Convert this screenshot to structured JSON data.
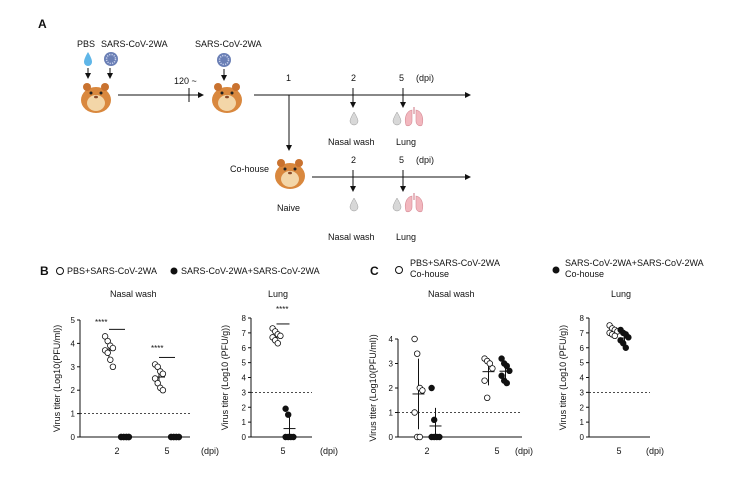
{
  "panelA": {
    "letter": "A",
    "pbs": "PBS",
    "virus1": "SARS-CoV-2WA",
    "virus2": "SARS-CoV-2WA",
    "interval": "120 ~",
    "days": [
      "1",
      "2",
      "5"
    ],
    "dpi": "(dpi)",
    "days2": [
      "2",
      "5"
    ],
    "dpi2": "(dpi)",
    "cohouse": "Co-house",
    "naive": "Naive",
    "nasal_wash": "Nasal wash",
    "lung": "Lung",
    "nasal_wash2": "Nasal wash",
    "lung2": "Lung"
  },
  "panelB": {
    "letter": "B",
    "legend_open": "PBS+SARS-CoV-2WA",
    "legend_filled": "SARS-CoV-2WA+SARS-CoV-2WA",
    "dpi_label": "(dpi)",
    "dpi_label2": "(dpi)",
    "sig1": "****",
    "sig2": "****",
    "sig3": "****"
  },
  "panelC": {
    "letter": "C",
    "legend_open_line1": "PBS+SARS-CoV-2WA",
    "legend_open_line2": "Co-house",
    "legend_filled_line1": "SARS-CoV-2WA+SARS-CoV-2WA",
    "legend_filled_line2": "Co-house",
    "dpi_label": "(dpi)",
    "dpi_label2": "(dpi)"
  },
  "colors": {
    "lung_pink": "#f2b7be",
    "hamster": "#d9883e",
    "drop_blue": "#5fb6e8",
    "virus_blue": "#6a7fb5"
  },
  "chart_data": [
    {
      "type": "scatter",
      "panel": "B",
      "title": "Nasal wash",
      "ylabel": "Virus titer (Log10(PFU/ml))",
      "categories": [
        "2",
        "5"
      ],
      "ylim": [
        0,
        5
      ],
      "yticks": [
        "0",
        "1",
        "2",
        "3",
        "4",
        "5"
      ],
      "limit_of_detection": 1,
      "series": [
        {
          "name": "PBS+SARS-CoV-2WA",
          "values": [
            [
              4.3,
              4.1,
              3.9,
              3.8,
              3.7,
              3.6,
              3.3,
              3.0
            ],
            [
              3.1,
              3.0,
              2.8,
              2.7,
              2.5,
              2.3,
              2.1,
              2.0
            ]
          ]
        },
        {
          "name": "SARS-CoV-2WA+SARS-CoV-2WA",
          "values": [
            [
              0,
              0,
              0,
              0,
              0,
              0,
              0,
              0
            ],
            [
              0,
              0,
              0,
              0,
              0,
              0,
              0,
              0
            ]
          ]
        }
      ]
    },
    {
      "type": "scatter",
      "panel": "B",
      "title": "Lung",
      "ylabel": "Virus titer (Log10 (PFU/g))",
      "categories": [
        "5"
      ],
      "ylim": [
        0,
        8
      ],
      "yticks": [
        "0",
        "1",
        "2",
        "3",
        "4",
        "5",
        "6",
        "7",
        "8"
      ],
      "limit_of_detection": 3,
      "series": [
        {
          "name": "PBS+SARS-CoV-2WA",
          "values": [
            [
              7.3,
              7.1,
              6.9,
              6.8,
              6.7,
              6.5,
              6.3
            ]
          ]
        },
        {
          "name": "SARS-CoV-2WA+SARS-CoV-2WA",
          "values": [
            [
              1.9,
              1.5,
              0,
              0,
              0,
              0
            ]
          ]
        }
      ]
    },
    {
      "type": "scatter",
      "panel": "C",
      "title": "Nasal wash",
      "ylabel": "Virus titer (Log10(PFU/ml))",
      "categories": [
        "2",
        "5"
      ],
      "ylim": [
        0,
        4
      ],
      "yticks": [
        "0",
        "1",
        "2",
        "3",
        "4"
      ],
      "limit_of_detection": 1,
      "series": [
        {
          "name": "PBS+SARS-CoV-2WA Co-house",
          "values": [
            [
              4.0,
              3.4,
              2.0,
              1.9,
              1.0,
              0,
              0
            ],
            [
              3.2,
              3.1,
              3.0,
              2.8,
              2.3,
              1.6
            ]
          ]
        },
        {
          "name": "SARS-CoV-2WA+SARS-CoV-2WA Co-house",
          "values": [
            [
              2.0,
              0.7,
              0,
              0,
              0,
              0
            ],
            [
              3.2,
              3.0,
              2.9,
              2.7,
              2.5,
              2.3,
              2.2
            ]
          ]
        }
      ]
    },
    {
      "type": "scatter",
      "panel": "C",
      "title": "Lung",
      "ylabel": "Virus titer (Log10 (PFU/g))",
      "categories": [
        "5"
      ],
      "ylim": [
        0,
        8
      ],
      "yticks": [
        "0",
        "1",
        "2",
        "3",
        "4",
        "5",
        "6",
        "7",
        "8"
      ],
      "limit_of_detection": 3,
      "series": [
        {
          "name": "PBS+SARS-CoV-2WA Co-house",
          "values": [
            [
              7.5,
              7.3,
              7.2,
              7.1,
              7.0,
              6.9,
              6.8
            ]
          ]
        },
        {
          "name": "SARS-CoV-2WA+SARS-CoV-2WA Co-house",
          "values": [
            [
              7.2,
              7.0,
              6.9,
              6.7,
              6.5,
              6.3,
              6.0
            ]
          ]
        }
      ]
    }
  ]
}
